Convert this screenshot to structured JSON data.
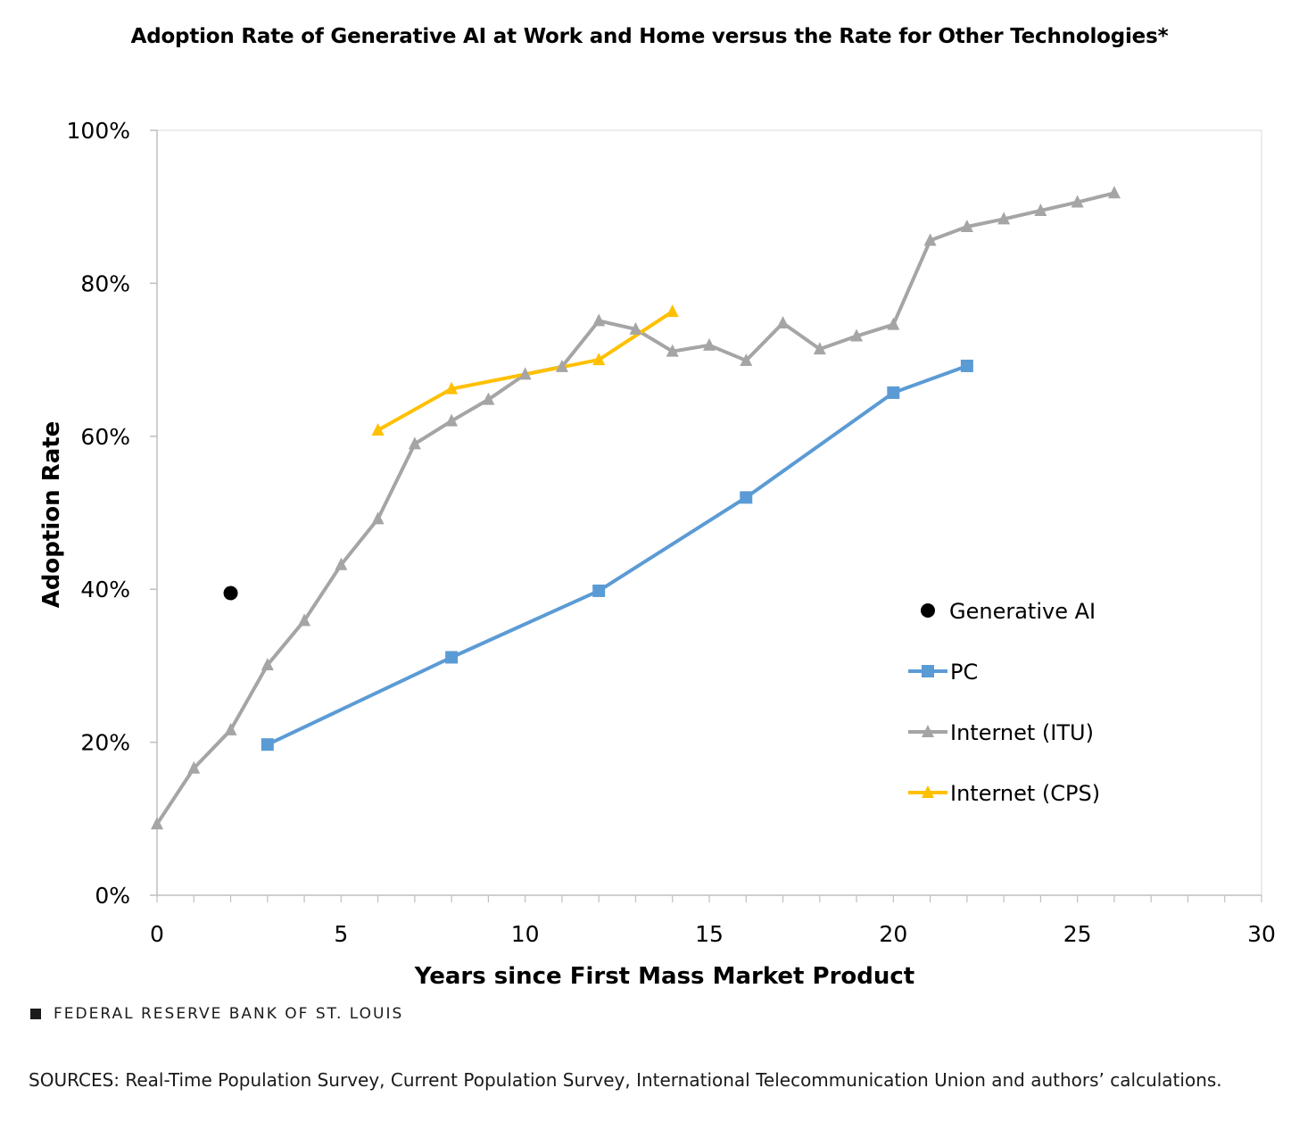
{
  "title": "Adoption Rate of Generative AI at Work and Home versus the Rate for Other Technologies*",
  "brand": "FEDERAL RESERVE BANK OF ST. LOUIS",
  "sources": "SOURCES: Real-Time Population Survey, Current Population Survey, International Telecommunication Union and authors’ calculations.",
  "chart_data": {
    "type": "line",
    "xlabel": "Years since First Mass Market Product",
    "ylabel": "Adoption Rate",
    "xlim": [
      0,
      30
    ],
    "ylim": [
      0,
      100
    ],
    "x_ticks": [
      0,
      5,
      10,
      15,
      20,
      25,
      30
    ],
    "x_tick_labels": [
      "0",
      "5",
      "10",
      "15",
      "20",
      "25",
      "30"
    ],
    "y_ticks": [
      0,
      20,
      40,
      60,
      80,
      100
    ],
    "y_tick_labels": [
      "0%",
      "20%",
      "40%",
      "60%",
      "80%",
      "100%"
    ],
    "grid": false,
    "legend_position": "right",
    "series": [
      {
        "name": "Generative AI",
        "marker": "circle",
        "line": false,
        "color": "#000000",
        "x": [
          2
        ],
        "y": [
          39.5
        ]
      },
      {
        "name": "PC",
        "marker": "square",
        "line": true,
        "color": "#5b9bd5",
        "x": [
          3,
          8,
          12,
          16,
          20,
          22
        ],
        "y": [
          19.7,
          31.1,
          39.8,
          52.0,
          65.7,
          69.2
        ]
      },
      {
        "name": "Internet (ITU)",
        "marker": "triangle",
        "line": true,
        "color": "#a5a5a5",
        "x": [
          0,
          1,
          2,
          3,
          4,
          5,
          6,
          7,
          8,
          9,
          10,
          11,
          12,
          13,
          14,
          15,
          16,
          17,
          18,
          19,
          20,
          21,
          22,
          23,
          24,
          25,
          26
        ],
        "y": [
          9.3,
          16.6,
          21.6,
          30.1,
          35.9,
          43.2,
          49.2,
          59.0,
          62.0,
          64.8,
          68.1,
          69.1,
          75.1,
          74.0,
          71.1,
          71.9,
          69.9,
          74.8,
          71.4,
          73.1,
          74.6,
          85.6,
          87.4,
          88.4,
          89.5,
          90.6,
          91.8
        ]
      },
      {
        "name": "Internet (CPS)",
        "marker": "triangle",
        "line": true,
        "color": "#ffc000",
        "x": [
          6,
          8,
          12,
          14
        ],
        "y": [
          60.8,
          66.2,
          70.0,
          76.3
        ]
      }
    ]
  }
}
